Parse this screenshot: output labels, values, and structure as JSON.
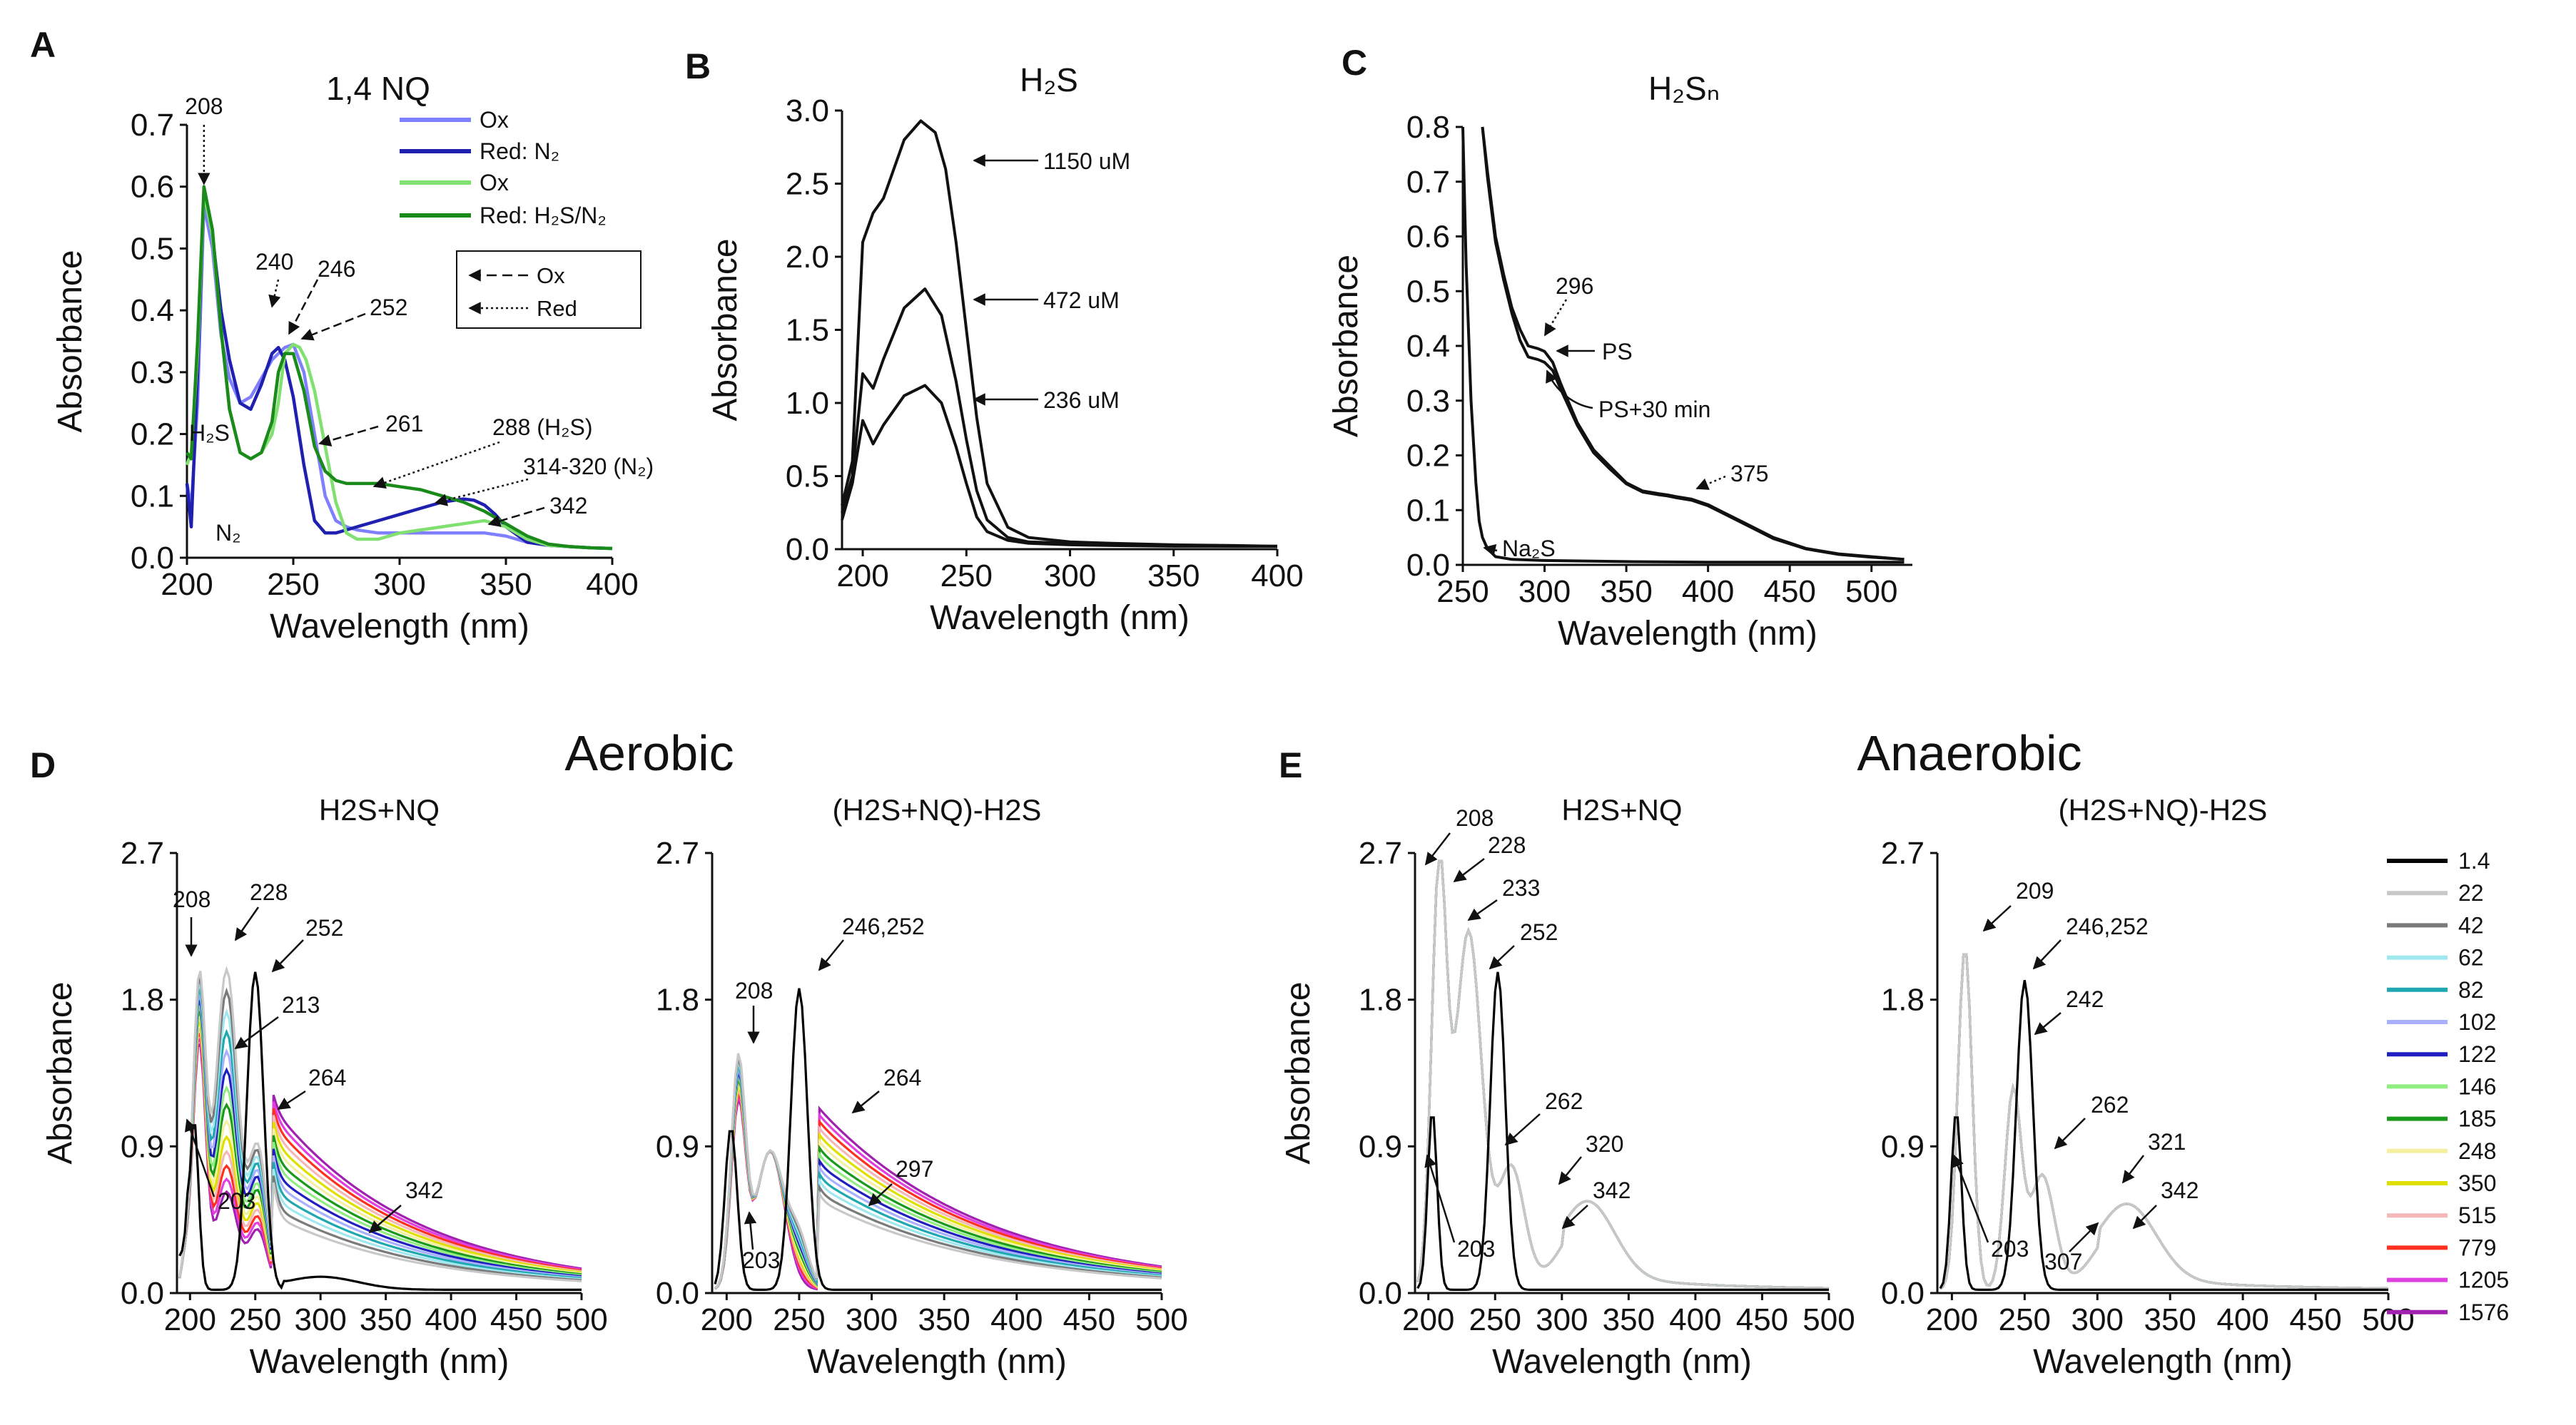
{
  "chart_data": [
    {
      "panel": "A",
      "type": "line",
      "title": "1,4 NQ",
      "xlabel": "Wavelength (nm)",
      "ylabel": "Absorbance",
      "xlim": [
        200,
        400
      ],
      "ylim": [
        0,
        0.7
      ],
      "xticks": [
        "200",
        "250",
        "300",
        "350",
        "400"
      ],
      "yticks": [
        "0.0",
        "0.1",
        "0.2",
        "0.3",
        "0.4",
        "0.5",
        "0.6",
        "0.7"
      ],
      "legend": {
        "position": "top-right",
        "entries": [
          {
            "label": "Ox",
            "color": "#8080ff"
          },
          {
            "label": "Red: N₂",
            "color": "#2020b0"
          },
          {
            "label": "Ox",
            "color": "#80e070"
          },
          {
            "label": "Red: H₂S/N₂",
            "color": "#1a8a1a"
          }
        ],
        "arrow_key": [
          {
            "label": "Ox",
            "style": "dashed"
          },
          {
            "label": "Red",
            "style": "dotted"
          }
        ]
      },
      "series": [
        {
          "name": "Ox (N2)",
          "color": "#8080ff",
          "x": [
            200,
            202,
            205,
            208,
            212,
            216,
            220,
            225,
            230,
            235,
            240,
            243,
            246,
            250,
            255,
            260,
            265,
            270,
            275,
            280,
            290,
            300,
            310,
            320,
            330,
            340,
            350,
            360,
            370,
            380,
            390,
            400
          ],
          "y": [
            0.12,
            0.08,
            0.25,
            0.57,
            0.5,
            0.36,
            0.29,
            0.25,
            0.26,
            0.29,
            0.32,
            0.33,
            0.34,
            0.345,
            0.3,
            0.2,
            0.1,
            0.06,
            0.05,
            0.045,
            0.04,
            0.04,
            0.04,
            0.04,
            0.04,
            0.04,
            0.035,
            0.025,
            0.02,
            0.018,
            0.016,
            0.015
          ]
        },
        {
          "name": "Red: N2",
          "color": "#2020b0",
          "x": [
            200,
            202,
            205,
            208,
            212,
            216,
            220,
            225,
            230,
            235,
            240,
            243,
            246,
            250,
            255,
            260,
            265,
            270,
            275,
            280,
            290,
            300,
            310,
            320,
            330,
            335,
            340,
            345,
            350,
            360,
            370,
            380,
            390,
            400
          ],
          "y": [
            0.12,
            0.05,
            0.3,
            0.59,
            0.52,
            0.4,
            0.32,
            0.25,
            0.24,
            0.28,
            0.33,
            0.34,
            0.32,
            0.26,
            0.15,
            0.06,
            0.04,
            0.04,
            0.045,
            0.05,
            0.06,
            0.07,
            0.08,
            0.09,
            0.095,
            0.093,
            0.085,
            0.07,
            0.05,
            0.025,
            0.02,
            0.018,
            0.016,
            0.015
          ]
        },
        {
          "name": "Ox (H2S/N2)",
          "color": "#80e070",
          "x": [
            200,
            202,
            205,
            208,
            212,
            216,
            220,
            225,
            230,
            235,
            240,
            243,
            246,
            250,
            253,
            256,
            260,
            265,
            270,
            275,
            280,
            290,
            300,
            310,
            320,
            330,
            340,
            350,
            360,
            370,
            380,
            390,
            400
          ],
          "y": [
            0.15,
            0.17,
            0.33,
            0.59,
            0.52,
            0.37,
            0.24,
            0.17,
            0.16,
            0.17,
            0.2,
            0.25,
            0.33,
            0.345,
            0.34,
            0.32,
            0.27,
            0.18,
            0.09,
            0.04,
            0.03,
            0.03,
            0.04,
            0.045,
            0.05,
            0.055,
            0.06,
            0.05,
            0.03,
            0.02,
            0.018,
            0.016,
            0.015
          ]
        },
        {
          "name": "Red: H2S/N2",
          "color": "#1a8a1a",
          "x": [
            200,
            202,
            205,
            208,
            212,
            216,
            220,
            225,
            230,
            235,
            240,
            243,
            246,
            250,
            255,
            260,
            265,
            270,
            275,
            280,
            290,
            300,
            310,
            320,
            330,
            340,
            350,
            360,
            370,
            380,
            390,
            400
          ],
          "y": [
            0.17,
            0.16,
            0.35,
            0.6,
            0.53,
            0.37,
            0.24,
            0.17,
            0.16,
            0.17,
            0.22,
            0.3,
            0.33,
            0.33,
            0.27,
            0.18,
            0.14,
            0.125,
            0.12,
            0.12,
            0.12,
            0.115,
            0.11,
            0.1,
            0.09,
            0.075,
            0.055,
            0.035,
            0.022,
            0.018,
            0.016,
            0.015
          ]
        }
      ],
      "annotations": [
        {
          "text": "208",
          "x": 208,
          "y": 0.6
        },
        {
          "text": "240",
          "x": 240,
          "y": 0.335
        },
        {
          "text": "246",
          "x": 246,
          "y": 0.34
        },
        {
          "text": "252",
          "x": 252,
          "y": 0.33
        },
        {
          "text": "261",
          "x": 261,
          "y": 0.18
        },
        {
          "text": "288 (H₂S)",
          "x": 288,
          "y": 0.12
        },
        {
          "text": "314-320 (N₂)",
          "x": 317,
          "y": 0.09
        },
        {
          "text": "342",
          "x": 342,
          "y": 0.06
        },
        {
          "text": "H₂S",
          "x": 202,
          "y": 0.17
        },
        {
          "text": "N₂",
          "x": 203,
          "y": 0.05
        }
      ]
    },
    {
      "panel": "B",
      "type": "line",
      "title": "H₂S",
      "xlabel": "Wavelength (nm)",
      "ylabel": "Absorbance",
      "xlim": [
        190,
        400
      ],
      "ylim": [
        0,
        3.0
      ],
      "xticks": [
        "200",
        "250",
        "300",
        "350",
        "400"
      ],
      "yticks": [
        "0.0",
        "0.5",
        "1.0",
        "1.5",
        "2.0",
        "2.5",
        "3.0"
      ],
      "series": [
        {
          "name": "1150 uM",
          "color": "#111111",
          "x": [
            190,
            195,
            200,
            205,
            210,
            220,
            228,
            235,
            240,
            245,
            250,
            255,
            260,
            270,
            280,
            300,
            320,
            350,
            380,
            400
          ],
          "y": [
            0.3,
            0.6,
            2.1,
            2.3,
            2.4,
            2.8,
            2.93,
            2.85,
            2.6,
            2.1,
            1.5,
            0.9,
            0.45,
            0.15,
            0.08,
            0.05,
            0.04,
            0.03,
            0.025,
            0.02
          ]
        },
        {
          "name": "472 uM",
          "color": "#111111",
          "x": [
            190,
            195,
            200,
            205,
            210,
            220,
            230,
            238,
            245,
            250,
            255,
            260,
            270,
            280,
            300,
            320,
            350,
            380,
            400
          ],
          "y": [
            0.25,
            0.5,
            1.2,
            1.1,
            1.3,
            1.65,
            1.78,
            1.6,
            1.15,
            0.75,
            0.4,
            0.2,
            0.08,
            0.05,
            0.04,
            0.03,
            0.025,
            0.02,
            0.02
          ]
        },
        {
          "name": "236 uM",
          "color": "#111111",
          "x": [
            190,
            195,
            200,
            205,
            210,
            220,
            230,
            238,
            245,
            250,
            255,
            260,
            270,
            280,
            300,
            320,
            350,
            380,
            400
          ],
          "y": [
            0.2,
            0.45,
            0.88,
            0.72,
            0.85,
            1.05,
            1.12,
            1.0,
            0.7,
            0.45,
            0.22,
            0.12,
            0.06,
            0.04,
            0.03,
            0.025,
            0.02,
            0.02,
            0.02
          ]
        }
      ],
      "annotations": [
        {
          "text": "1150 uM",
          "x": 228,
          "y": 2.7
        },
        {
          "text": "472 uM",
          "x": 238,
          "y": 1.7
        },
        {
          "text": "236 uM",
          "x": 240,
          "y": 1.0
        }
      ]
    },
    {
      "panel": "C",
      "type": "line",
      "title": "H₂Sₙ",
      "xlabel": "Wavelength (nm)",
      "ylabel": "Absorbance",
      "xlim": [
        250,
        525
      ],
      "ylim": [
        0,
        0.8
      ],
      "xticks": [
        "250",
        "300",
        "350",
        "400",
        "450",
        "500"
      ],
      "yticks": [
        "0.0",
        "0.1",
        "0.2",
        "0.3",
        "0.4",
        "0.5",
        "0.6",
        "0.7",
        "0.8"
      ],
      "series": [
        {
          "name": "PS",
          "color": "#111111",
          "x": [
            262,
            265,
            270,
            275,
            280,
            285,
            290,
            296,
            300,
            305,
            310,
            320,
            330,
            340,
            350,
            360,
            370,
            375,
            380,
            390,
            400,
            420,
            440,
            460,
            480,
            500,
            520
          ],
          "y": [
            0.8,
            0.72,
            0.6,
            0.53,
            0.47,
            0.43,
            0.4,
            0.395,
            0.39,
            0.37,
            0.33,
            0.26,
            0.21,
            0.18,
            0.15,
            0.135,
            0.13,
            0.128,
            0.125,
            0.12,
            0.11,
            0.08,
            0.05,
            0.03,
            0.02,
            0.015,
            0.01
          ]
        },
        {
          "name": "PS+30 min",
          "color": "#111111",
          "x": [
            262,
            265,
            270,
            275,
            280,
            285,
            290,
            296,
            300,
            305,
            310,
            320,
            330,
            340,
            350,
            360,
            370,
            375,
            380,
            390,
            400,
            420,
            440,
            460,
            480,
            500,
            520
          ],
          "y": [
            0.8,
            0.71,
            0.59,
            0.52,
            0.46,
            0.41,
            0.38,
            0.375,
            0.37,
            0.355,
            0.32,
            0.255,
            0.205,
            0.175,
            0.148,
            0.133,
            0.128,
            0.126,
            0.123,
            0.118,
            0.108,
            0.078,
            0.048,
            0.029,
            0.019,
            0.014,
            0.01
          ]
        },
        {
          "name": "Na₂S",
          "color": "#111111",
          "x": [
            250,
            252,
            255,
            258,
            260,
            262,
            265,
            270,
            280,
            300,
            350,
            400,
            450,
            500,
            520
          ],
          "y": [
            0.8,
            0.55,
            0.3,
            0.15,
            0.08,
            0.05,
            0.03,
            0.015,
            0.01,
            0.008,
            0.006,
            0.005,
            0.005,
            0.005,
            0.005
          ]
        }
      ],
      "annotations": [
        {
          "text": "296",
          "x": 296,
          "y": 0.395
        },
        {
          "text": "PS",
          "x": 305,
          "y": 0.385
        },
        {
          "text": "PS+30 min",
          "x": 300,
          "y": 0.36
        },
        {
          "text": "375",
          "x": 375,
          "y": 0.128
        },
        {
          "text": "Na₂S",
          "x": 262,
          "y": 0.03
        }
      ]
    },
    {
      "panel": "D",
      "group_title": "Aerobic",
      "subpanels": [
        {
          "type": "line",
          "title": "H2S+NQ",
          "xlabel": "Wavelength (nm)",
          "ylabel": "Absorbance",
          "xlim": [
            190,
            500
          ],
          "ylim": [
            0,
            2.7
          ],
          "xticks": [
            "200",
            "250",
            "300",
            "350",
            "400",
            "450",
            "500"
          ],
          "yticks": [
            "0.0",
            "0.9",
            "1.8",
            "2.7"
          ],
          "annotations": [
            "208",
            "228",
            "252",
            "213",
            "264",
            "203",
            "342"
          ]
        },
        {
          "type": "line",
          "title": "(H2S+NQ)-H2S",
          "xlabel": "Wavelength (nm)",
          "ylabel": "",
          "xlim": [
            190,
            500
          ],
          "ylim": [
            0,
            2.7
          ],
          "xticks": [
            "200",
            "250",
            "300",
            "350",
            "400",
            "450",
            "500"
          ],
          "yticks": [
            "0.0",
            "0.9",
            "1.8",
            "2.7"
          ],
          "annotations": [
            "246,252",
            "208",
            "264",
            "297",
            "203"
          ]
        }
      ]
    },
    {
      "panel": "E",
      "group_title": "Anaerobic",
      "subpanels": [
        {
          "type": "line",
          "title": "H2S+NQ",
          "xlabel": "Wavelength (nm)",
          "ylabel": "Absorbance",
          "xlim": [
            190,
            500
          ],
          "ylim": [
            0,
            2.7
          ],
          "xticks": [
            "200",
            "250",
            "300",
            "350",
            "400",
            "450",
            "500"
          ],
          "yticks": [
            "0.0",
            "0.9",
            "1.8",
            "2.7"
          ],
          "annotations": [
            "208",
            "228",
            "233",
            "252",
            "262",
            "320",
            "342",
            "203"
          ]
        },
        {
          "type": "line",
          "title": "(H2S+NQ)-H2S",
          "xlabel": "Wavelength (nm)",
          "ylabel": "",
          "xlim": [
            190,
            500
          ],
          "ylim": [
            0,
            2.7
          ],
          "xticks": [
            "200",
            "250",
            "300",
            "350",
            "400",
            "450",
            "500"
          ],
          "yticks": [
            "0.0",
            "0.9",
            "1.8",
            "2.7"
          ],
          "annotations": [
            "209",
            "246,252",
            "242",
            "262",
            "321",
            "342",
            "203",
            "307"
          ]
        }
      ]
    }
  ],
  "time_legend": {
    "labels": [
      "1.4",
      "22",
      "42",
      "62",
      "82",
      "102",
      "122",
      "146",
      "185",
      "248",
      "350",
      "515",
      "779",
      "1205",
      "1576"
    ],
    "colors": [
      "#000000",
      "#c8c8c8",
      "#7a7a7a",
      "#9fe8ef",
      "#1fa8b0",
      "#a8b0ff",
      "#2020c0",
      "#90ee80",
      "#1a9a1a",
      "#f4f0a0",
      "#e0e000",
      "#f4b8b8",
      "#ff3020",
      "#e040e0",
      "#a020b0"
    ]
  }
}
